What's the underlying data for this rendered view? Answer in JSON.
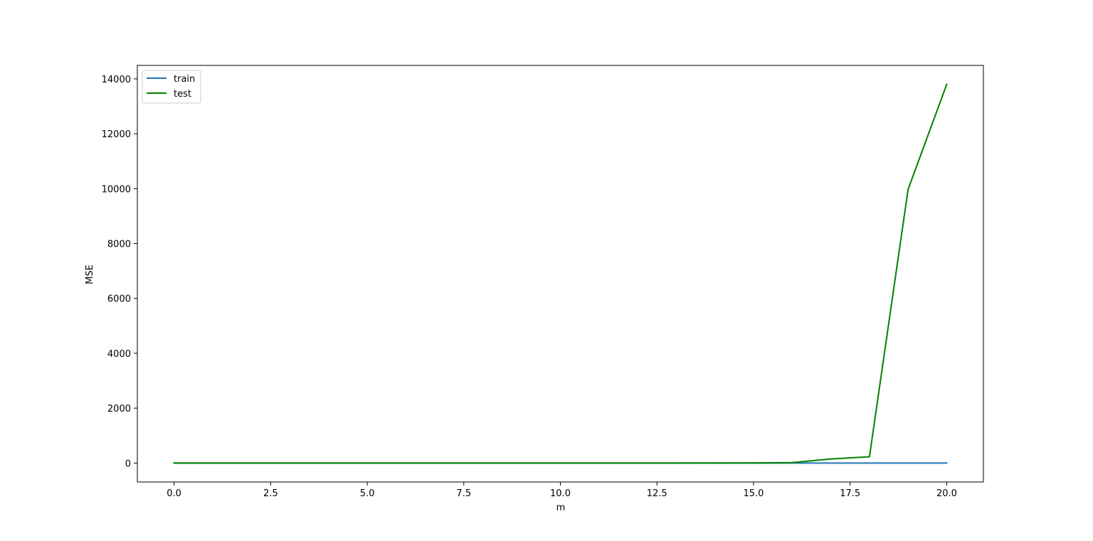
{
  "chart_data": {
    "type": "line",
    "title": "",
    "xlabel": "m",
    "ylabel": "MSE",
    "xlim": [
      -0.95,
      20.95
    ],
    "ylim": [
      -690,
      14490
    ],
    "xticks": [
      0.0,
      2.5,
      5.0,
      7.5,
      10.0,
      12.5,
      15.0,
      17.5,
      20.0
    ],
    "xtick_labels": [
      "0.0",
      "2.5",
      "5.0",
      "7.5",
      "10.0",
      "12.5",
      "15.0",
      "17.5",
      "20.0"
    ],
    "yticks": [
      0,
      2000,
      4000,
      6000,
      8000,
      10000,
      12000,
      14000
    ],
    "ytick_labels": [
      "0",
      "2000",
      "4000",
      "6000",
      "8000",
      "10000",
      "12000",
      "14000"
    ],
    "grid": false,
    "legend_position": "top-left",
    "x": [
      0,
      1,
      2,
      3,
      4,
      5,
      6,
      7,
      8,
      9,
      10,
      11,
      12,
      13,
      14,
      15,
      16,
      17,
      18,
      19,
      20
    ],
    "series": [
      {
        "name": "train",
        "color": "#1f77b4",
        "values": [
          0,
          0,
          0,
          0,
          0,
          0,
          0,
          0,
          0,
          0,
          0,
          0,
          0,
          0,
          0,
          0,
          0,
          0,
          0,
          0,
          0
        ]
      },
      {
        "name": "test",
        "color": "#008000",
        "values": [
          0,
          0,
          0,
          0,
          0,
          0,
          0,
          0,
          0,
          0,
          0,
          0,
          0,
          0,
          2,
          5,
          15,
          150,
          230,
          9970,
          13800
        ]
      }
    ]
  }
}
